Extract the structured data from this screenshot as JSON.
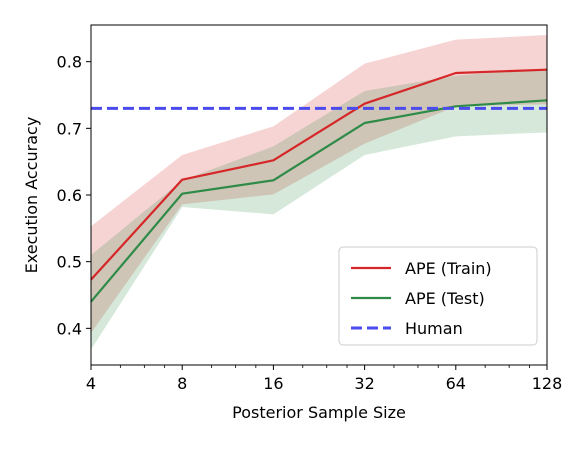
{
  "chart_data": {
    "type": "line",
    "xlabel": "Posterior Sample Size",
    "ylabel": "Execution Accuracy",
    "x_scale": "log2",
    "x": [
      4,
      8,
      16,
      32,
      64,
      128
    ],
    "x_tick_labels": [
      "4",
      "8",
      "16",
      "32",
      "64",
      "128"
    ],
    "y_ticks": [
      0.4,
      0.5,
      0.6,
      0.7,
      0.8
    ],
    "y_tick_labels": [
      "0.4",
      "0.5",
      "0.6",
      "0.7",
      "0.8"
    ],
    "xlim": [
      4,
      128
    ],
    "ylim": [
      0.345,
      0.855
    ],
    "grid": false,
    "legend_position": "lower-right",
    "series": [
      {
        "name": "APE (Train)",
        "color": "#d62728",
        "style": "solid",
        "values": [
          0.473,
          0.623,
          0.652,
          0.737,
          0.783,
          0.788
        ],
        "band_upper": [
          0.553,
          0.66,
          0.703,
          0.797,
          0.833,
          0.84
        ],
        "band_lower": [
          0.393,
          0.586,
          0.601,
          0.677,
          0.733,
          0.736
        ]
      },
      {
        "name": "APE (Test)",
        "color": "#2e8b47",
        "style": "solid",
        "values": [
          0.44,
          0.602,
          0.622,
          0.708,
          0.733,
          0.742
        ],
        "band_upper": [
          0.51,
          0.622,
          0.673,
          0.756,
          0.779,
          0.79
        ],
        "band_lower": [
          0.368,
          0.582,
          0.571,
          0.66,
          0.688,
          0.694
        ]
      },
      {
        "name": "Human",
        "color": "#4b4bf0",
        "style": "dashed",
        "constant": 0.73
      }
    ]
  }
}
